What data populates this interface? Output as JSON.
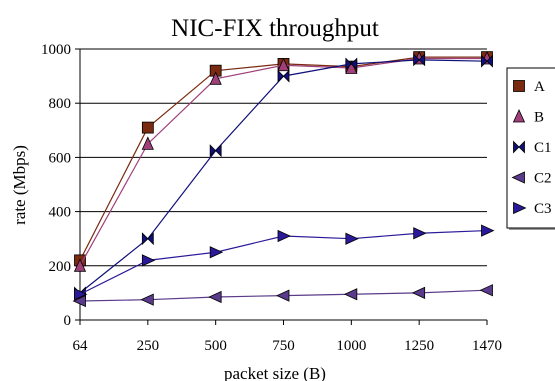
{
  "chart_data": {
    "type": "line",
    "title": "NIC-FIX throughput",
    "xlabel": "packet size (B)",
    "ylabel": "rate (Mbps)",
    "categories": [
      "64",
      "250",
      "500",
      "750",
      "1000",
      "1250",
      "1470"
    ],
    "ylim": [
      0,
      1000
    ],
    "yticks": [
      "0",
      "200",
      "400",
      "600",
      "800",
      "1000"
    ],
    "grid": "horizontal",
    "legend_position": "right",
    "series": [
      {
        "name": "A",
        "color": "#7a2a10",
        "marker": "square",
        "values": [
          220,
          710,
          920,
          945,
          935,
          970,
          970
        ]
      },
      {
        "name": "B",
        "color": "#a0407a",
        "marker": "triangle-up",
        "values": [
          200,
          650,
          890,
          940,
          930,
          965,
          965
        ]
      },
      {
        "name": "C1",
        "color": "#10107a",
        "marker": "bowtie",
        "values": [
          100,
          300,
          625,
          900,
          945,
          960,
          955
        ]
      },
      {
        "name": "C2",
        "color": "#5a3a8a",
        "marker": "triangle-left",
        "values": [
          70,
          75,
          85,
          90,
          95,
          100,
          110
        ]
      },
      {
        "name": "C3",
        "color": "#2a1a9a",
        "marker": "triangle-right",
        "values": [
          95,
          220,
          250,
          310,
          300,
          320,
          330
        ]
      }
    ]
  }
}
